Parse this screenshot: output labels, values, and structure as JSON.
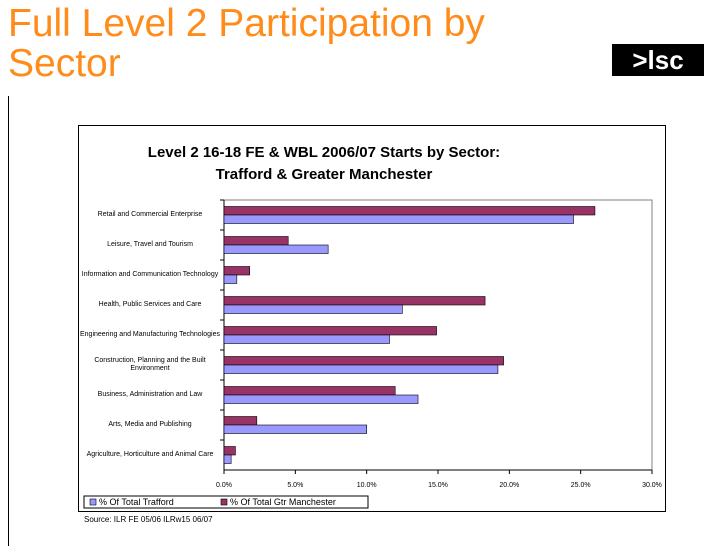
{
  "slide": {
    "title": "Full Level 2 Participation by Sector",
    "logo": ">lsc"
  },
  "chart_data": {
    "type": "hbar",
    "title": "Level 2 16-18 FE & WBL 2006/07 Starts by Sector: Trafford & Greater Manchester",
    "categories": [
      "Retail and Commercial Enterprise",
      "Leisure, Travel and Tourism",
      "Information and Communication Technology",
      "Health, Public Services and Care",
      "Engineering and Manufacturing Technologies",
      "Construction, Planning and the Built Environment",
      "Business, Administration and Law",
      "Arts, Media and Publishing",
      "Agriculture, Horticulture and Animal Care"
    ],
    "series": [
      {
        "name": "% Of Total Gtr Manchester",
        "color": "#993366",
        "values": [
          26.0,
          4.5,
          1.8,
          18.3,
          14.9,
          19.6,
          12.0,
          2.3,
          0.8
        ]
      },
      {
        "name": "% Of Total Trafford",
        "color": "#9999ff",
        "values": [
          24.5,
          7.3,
          0.9,
          12.5,
          11.6,
          19.2,
          13.6,
          10.0,
          0.5
        ]
      }
    ],
    "legend_order": [
      1,
      0
    ],
    "legend": "bottom-left",
    "xlim": [
      0,
      30
    ],
    "xticks": [
      {
        "value": 0,
        "label": "0.0%"
      },
      {
        "value": 5,
        "label": "5.0%"
      },
      {
        "value": 10,
        "label": "10.0%"
      },
      {
        "value": 15,
        "label": "15.0%"
      },
      {
        "value": 20,
        "label": "20.0%"
      },
      {
        "value": 25,
        "label": "25.0%"
      },
      {
        "value": 30,
        "label": "30.0%"
      }
    ],
    "grid": false,
    "source": "Source: ILR FE 05/06 ILRw15 06/07"
  }
}
